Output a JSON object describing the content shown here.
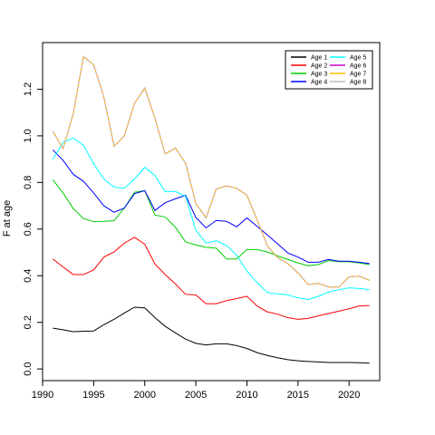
{
  "chart_data": {
    "type": "line",
    "title": "",
    "xlabel": "",
    "ylabel": "F at age",
    "xlim": [
      1990,
      2023
    ],
    "ylim": [
      -0.05,
      1.4
    ],
    "x_ticks": [
      1990,
      1995,
      2000,
      2005,
      2010,
      2015,
      2020
    ],
    "y_ticks": [
      0.0,
      0.2,
      0.4,
      0.6,
      0.8,
      1.0,
      1.2
    ],
    "y_tick_labels": [
      "0.0",
      "0.2",
      "0.4",
      "0.6",
      "0.8",
      "1.0",
      "1.2"
    ],
    "grid": false,
    "legend_position": "top-right",
    "x": [
      1991,
      1992,
      1993,
      1994,
      1995,
      1996,
      1997,
      1998,
      1999,
      2000,
      2001,
      2002,
      2003,
      2004,
      2005,
      2006,
      2007,
      2008,
      2009,
      2010,
      2011,
      2012,
      2013,
      2014,
      2015,
      2016,
      2017,
      2018,
      2019,
      2020,
      2021,
      2022
    ],
    "series": [
      {
        "name": "Age 1",
        "color": "#000000",
        "values": [
          0.175,
          0.168,
          0.16,
          0.162,
          0.163,
          0.19,
          0.213,
          0.24,
          0.265,
          0.262,
          0.22,
          0.183,
          0.155,
          0.128,
          0.11,
          0.103,
          0.108,
          0.108,
          0.1,
          0.088,
          0.07,
          0.058,
          0.048,
          0.04,
          0.035,
          0.032,
          0.03,
          0.028,
          0.028,
          0.028,
          0.027,
          0.025
        ]
      },
      {
        "name": "Age 2",
        "color": "#ff0000",
        "values": [
          0.472,
          0.438,
          0.405,
          0.405,
          0.425,
          0.48,
          0.502,
          0.54,
          0.565,
          0.535,
          0.45,
          0.405,
          0.365,
          0.32,
          0.318,
          0.28,
          0.28,
          0.293,
          0.302,
          0.312,
          0.27,
          0.245,
          0.235,
          0.22,
          0.213,
          0.217,
          0.228,
          0.238,
          0.248,
          0.258,
          0.27,
          0.272
        ]
      },
      {
        "name": "Age 3",
        "color": "#00cd00",
        "values": [
          0.812,
          0.755,
          0.688,
          0.645,
          0.632,
          0.633,
          0.636,
          0.69,
          0.758,
          0.765,
          0.66,
          0.652,
          0.608,
          0.545,
          0.532,
          0.522,
          0.518,
          0.472,
          0.472,
          0.512,
          0.512,
          0.502,
          0.485,
          0.47,
          0.455,
          0.443,
          0.448,
          0.465,
          0.46,
          0.46,
          0.455,
          0.448
        ]
      },
      {
        "name": "Age 4",
        "color": "#0000ff",
        "values": [
          0.94,
          0.895,
          0.835,
          0.805,
          0.755,
          0.7,
          0.672,
          0.69,
          0.752,
          0.765,
          0.68,
          0.713,
          0.73,
          0.745,
          0.65,
          0.605,
          0.637,
          0.633,
          0.61,
          0.648,
          0.612,
          0.575,
          0.537,
          0.498,
          0.48,
          0.458,
          0.458,
          0.47,
          0.462,
          0.462,
          0.458,
          0.452
        ]
      },
      {
        "name": "Age 5",
        "color": "#00ffff",
        "values": [
          0.9,
          0.972,
          0.99,
          0.96,
          0.88,
          0.815,
          0.78,
          0.775,
          0.815,
          0.865,
          0.83,
          0.76,
          0.762,
          0.74,
          0.595,
          0.54,
          0.55,
          0.53,
          0.488,
          0.42,
          0.37,
          0.328,
          0.322,
          0.318,
          0.305,
          0.298,
          0.312,
          0.33,
          0.34,
          0.348,
          0.345,
          0.34
        ]
      },
      {
        "name": "Age 6",
        "color": "#cc00cc",
        "values": [
          1.02,
          0.945,
          1.095,
          1.34,
          1.305,
          1.165,
          0.955,
          1.0,
          1.14,
          1.205,
          1.075,
          0.922,
          0.948,
          0.882,
          0.71,
          0.648,
          0.772,
          0.785,
          0.775,
          0.745,
          0.64,
          0.528,
          0.478,
          0.452,
          0.412,
          0.362,
          0.368,
          0.352,
          0.352,
          0.395,
          0.398,
          0.38
        ]
      },
      {
        "name": "Age 7",
        "color": "#ffbf00",
        "values": [
          1.02,
          0.945,
          1.095,
          1.34,
          1.305,
          1.165,
          0.955,
          1.0,
          1.14,
          1.205,
          1.075,
          0.922,
          0.948,
          0.882,
          0.71,
          0.648,
          0.772,
          0.785,
          0.775,
          0.745,
          0.64,
          0.528,
          0.478,
          0.452,
          0.412,
          0.362,
          0.368,
          0.352,
          0.352,
          0.395,
          0.398,
          0.38
        ]
      },
      {
        "name": "Age 8",
        "color": "#bebebe",
        "values": [
          1.02,
          0.945,
          1.095,
          1.34,
          1.305,
          1.165,
          0.955,
          1.0,
          1.14,
          1.205,
          1.075,
          0.922,
          0.948,
          0.882,
          0.71,
          0.648,
          0.772,
          0.785,
          0.775,
          0.745,
          0.64,
          0.528,
          0.478,
          0.452,
          0.412,
          0.362,
          0.368,
          0.352,
          0.352,
          0.395,
          0.398,
          0.38
        ]
      }
    ],
    "legend_order": [
      "Age 1",
      "Age 2",
      "Age 3",
      "Age 4",
      "Age 5",
      "Age 6",
      "Age 7",
      "Age 8"
    ]
  }
}
